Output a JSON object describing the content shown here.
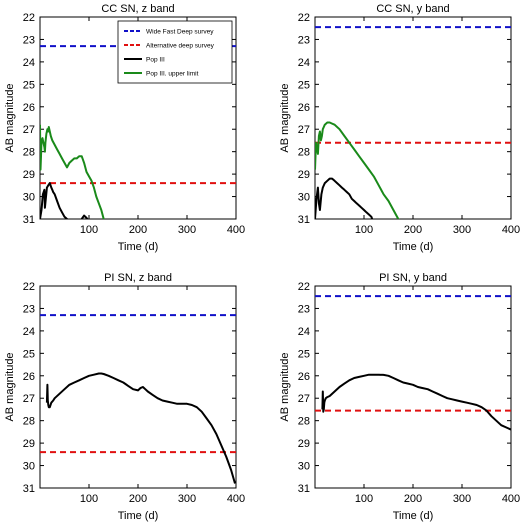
{
  "chart_data": [
    {
      "type": "line",
      "title": "CC SN, z band",
      "xlabel": "Time (d)",
      "ylabel": "AB magnitude",
      "xlim": [
        0,
        400
      ],
      "ylim": [
        31,
        22
      ],
      "y_inverted": true,
      "xticks": [
        100,
        200,
        300,
        400
      ],
      "yticks": [
        22,
        23,
        24,
        25,
        26,
        27,
        28,
        29,
        30,
        31
      ],
      "grid": false,
      "legend_position": "top-right",
      "hlines": [
        {
          "name": "Wide Fast Deep survey",
          "y": 23.3,
          "color": "#1010c8",
          "style": "dashed"
        },
        {
          "name": "Alternative deep survey",
          "y": 29.4,
          "color": "#e01010",
          "style": "dashed"
        }
      ],
      "series": [
        {
          "name": "Pop III",
          "color": "#000000",
          "x": [
            0,
            3,
            6,
            9,
            10,
            14,
            17,
            20,
            23,
            25,
            27,
            30,
            35,
            40,
            45,
            50,
            55,
            60,
            65,
            70
          ],
          "y": [
            31.0,
            30.6,
            29.9,
            29.7,
            30.5,
            29.6,
            29.5,
            29.4,
            29.6,
            29.7,
            29.8,
            29.9,
            30.2,
            30.5,
            30.7,
            30.9,
            31.0,
            31.1,
            31.2,
            31.3
          ]
        },
        {
          "name": "",
          "color": "#000000",
          "x": [
            85,
            90,
            95,
            100
          ],
          "y": [
            31.0,
            30.85,
            30.95,
            31.1
          ]
        },
        {
          "name": "Pop III. upper limit",
          "color": "#1a8a1a",
          "x": [
            0,
            1,
            2,
            3,
            5,
            7,
            9,
            10,
            11,
            13,
            15,
            17,
            18,
            20,
            22,
            25,
            30,
            35,
            40,
            45,
            50,
            55,
            60,
            65,
            70,
            75,
            80,
            85,
            90,
            95,
            100,
            105,
            110,
            115,
            120,
            125,
            130,
            135
          ],
          "y": [
            26.8,
            28.8,
            28.2,
            27.5,
            27.4,
            27.6,
            27.8,
            28.0,
            27.6,
            27.2,
            27.0,
            27.1,
            26.9,
            27.1,
            27.3,
            27.5,
            27.7,
            27.9,
            28.1,
            28.3,
            28.5,
            28.7,
            28.5,
            28.4,
            28.3,
            28.3,
            28.2,
            28.2,
            28.5,
            28.9,
            29.1,
            29.3,
            29.6,
            30.0,
            30.3,
            30.6,
            31.0,
            31.2
          ]
        }
      ]
    },
    {
      "type": "line",
      "title": "CC SN, y band",
      "xlabel": "Time (d)",
      "ylabel": "AB magnitude",
      "xlim": [
        0,
        400
      ],
      "ylim": [
        31,
        22
      ],
      "y_inverted": true,
      "xticks": [
        100,
        200,
        300,
        400
      ],
      "yticks": [
        22,
        23,
        24,
        25,
        26,
        27,
        28,
        29,
        30,
        31
      ],
      "grid": false,
      "hlines": [
        {
          "y": 22.45,
          "color": "#1010c8",
          "style": "dashed"
        },
        {
          "y": 27.6,
          "color": "#e01010",
          "style": "dashed"
        }
      ],
      "series": [
        {
          "name": "",
          "color": "#000000",
          "x": [
            0,
            3,
            6,
            8,
            10,
            13,
            16,
            20,
            25,
            30,
            35,
            40,
            45,
            50,
            55,
            60,
            65,
            70,
            75,
            80,
            85,
            90,
            95,
            100,
            105,
            110,
            115,
            120
          ],
          "y": [
            31.0,
            30.1,
            29.6,
            30.3,
            30.6,
            29.9,
            29.6,
            29.4,
            29.3,
            29.2,
            29.2,
            29.3,
            29.4,
            29.5,
            29.6,
            29.7,
            29.8,
            29.9,
            30.1,
            30.2,
            30.3,
            30.4,
            30.5,
            30.6,
            30.7,
            30.8,
            30.9,
            31.2
          ]
        },
        {
          "name": "",
          "color": "#1a8a1a",
          "x": [
            0,
            2,
            4,
            6,
            8,
            10,
            12,
            14,
            16,
            18,
            20,
            25,
            30,
            35,
            40,
            50,
            60,
            70,
            80,
            90,
            100,
            110,
            120,
            130,
            140,
            150,
            160,
            170,
            175
          ],
          "y": [
            28.8,
            27.6,
            27.8,
            28.1,
            27.3,
            27.1,
            27.5,
            27.3,
            27.0,
            26.9,
            26.8,
            26.7,
            26.7,
            26.75,
            26.8,
            27.0,
            27.3,
            27.6,
            27.9,
            28.2,
            28.5,
            28.8,
            29.1,
            29.5,
            29.9,
            30.2,
            30.6,
            31.0,
            31.2
          ]
        }
      ]
    },
    {
      "type": "line",
      "title": "PI SN, z band",
      "xlabel": "Time (d)",
      "ylabel": "AB magnitude",
      "xlim": [
        0,
        400
      ],
      "ylim": [
        31,
        22
      ],
      "y_inverted": true,
      "xticks": [
        100,
        200,
        300,
        400
      ],
      "yticks": [
        22,
        23,
        24,
        25,
        26,
        27,
        28,
        29,
        30,
        31
      ],
      "grid": false,
      "hlines": [
        {
          "y": 23.3,
          "color": "#1010c8",
          "style": "dashed"
        },
        {
          "y": 29.4,
          "color": "#e01010",
          "style": "dashed"
        }
      ],
      "series": [
        {
          "name": "",
          "color": "#000000",
          "x": [
            14,
            15,
            16,
            17,
            18,
            20,
            23,
            27,
            30,
            40,
            50,
            60,
            70,
            80,
            90,
            100,
            110,
            120,
            125,
            130,
            140,
            150,
            160,
            170,
            180,
            190,
            200,
            205,
            210,
            215,
            220,
            230,
            240,
            250,
            260,
            270,
            280,
            290,
            300,
            310,
            320,
            330,
            340,
            350,
            360,
            370,
            380,
            390,
            398
          ],
          "y": [
            27.2,
            26.4,
            27.1,
            27.3,
            27.4,
            27.4,
            27.2,
            27.1,
            27.0,
            26.8,
            26.6,
            26.4,
            26.3,
            26.2,
            26.1,
            26.0,
            25.95,
            25.9,
            25.9,
            25.92,
            26.0,
            26.1,
            26.2,
            26.3,
            26.45,
            26.6,
            26.65,
            26.55,
            26.5,
            26.6,
            26.7,
            26.85,
            27.0,
            27.1,
            27.15,
            27.2,
            27.25,
            27.25,
            27.25,
            27.3,
            27.4,
            27.6,
            27.9,
            28.2,
            28.6,
            29.1,
            29.6,
            30.2,
            30.8
          ]
        }
      ]
    },
    {
      "type": "line",
      "title": "PI SN, y band",
      "xlabel": "Time (d)",
      "ylabel": "AB magnitude",
      "xlim": [
        0,
        400
      ],
      "ylim": [
        31,
        22
      ],
      "y_inverted": true,
      "xticks": [
        100,
        200,
        300,
        400
      ],
      "yticks": [
        22,
        23,
        24,
        25,
        26,
        27,
        28,
        29,
        30,
        31
      ],
      "grid": false,
      "hlines": [
        {
          "y": 22.45,
          "color": "#1010c8",
          "style": "dashed"
        },
        {
          "y": 27.55,
          "color": "#e01010",
          "style": "dashed"
        }
      ],
      "series": [
        {
          "name": "",
          "color": "#000000",
          "x": [
            15,
            16,
            17,
            18,
            19,
            20,
            22,
            25,
            30,
            40,
            50,
            60,
            70,
            80,
            90,
            100,
            110,
            120,
            130,
            140,
            150,
            160,
            170,
            180,
            190,
            200,
            210,
            220,
            230,
            240,
            250,
            260,
            270,
            280,
            290,
            300,
            310,
            320,
            330,
            340,
            350,
            360,
            370,
            380,
            390,
            400
          ],
          "y": [
            27.5,
            26.7,
            27.6,
            27.5,
            27.2,
            27.1,
            27.0,
            26.95,
            26.9,
            26.7,
            26.5,
            26.35,
            26.2,
            26.1,
            26.05,
            26.0,
            25.95,
            25.95,
            25.95,
            25.96,
            26.0,
            26.1,
            26.2,
            26.3,
            26.35,
            26.4,
            26.5,
            26.55,
            26.6,
            26.7,
            26.8,
            26.9,
            27.0,
            27.05,
            27.1,
            27.15,
            27.2,
            27.25,
            27.3,
            27.4,
            27.55,
            27.8,
            28.0,
            28.2,
            28.3,
            28.4
          ]
        }
      ]
    }
  ]
}
